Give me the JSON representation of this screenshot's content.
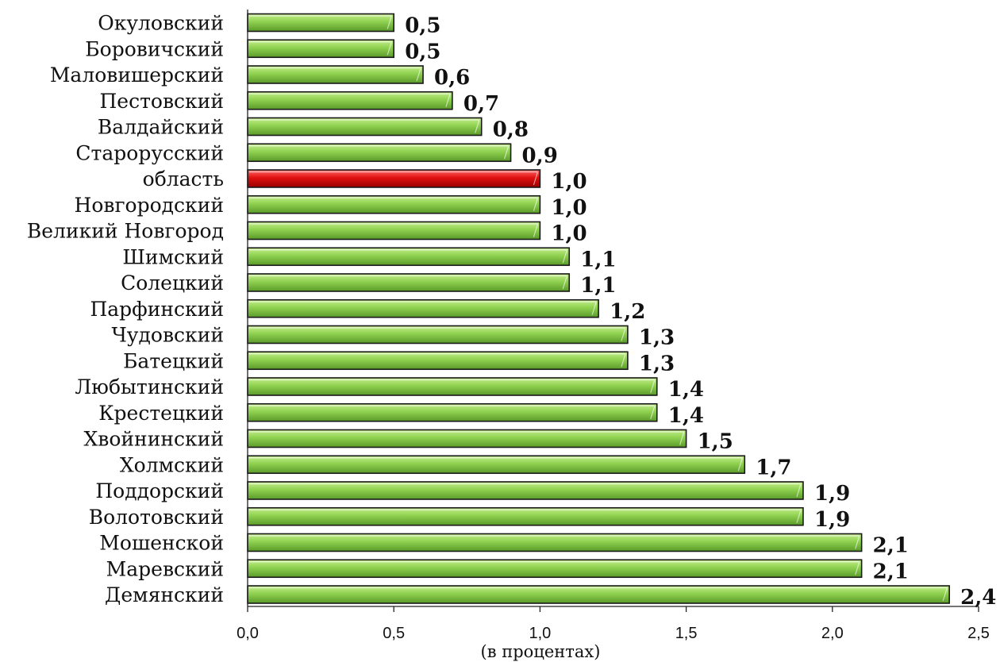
{
  "chart_data": {
    "type": "bar",
    "orientation": "horizontal",
    "categories": [
      "Окуловский",
      "Боровичский",
      "Маловишерский",
      "Пестовский",
      "Валдайский",
      "Старорусский",
      "область",
      "Новгородский",
      "Великий Новгород",
      "Шимский",
      "Солецкий",
      "Парфинский",
      "Чудовский",
      "Батецкий",
      "Любытинский",
      "Крестецкий",
      "Хвойнинский",
      "Холмский",
      "Поддорский",
      "Волотовский",
      "Мошенской",
      "Маревский",
      "Демянский"
    ],
    "values": [
      0.5,
      0.5,
      0.6,
      0.7,
      0.8,
      0.9,
      1.0,
      1.0,
      1.0,
      1.1,
      1.1,
      1.2,
      1.3,
      1.3,
      1.4,
      1.4,
      1.5,
      1.7,
      1.9,
      1.9,
      2.1,
      2.1,
      2.4
    ],
    "value_labels": [
      "0,5",
      "0,5",
      "0,6",
      "0,7",
      "0,8",
      "0,9",
      "1,0",
      "1,0",
      "1,0",
      "1,1",
      "1,1",
      "1,2",
      "1,3",
      "1,3",
      "1,4",
      "1,4",
      "1,5",
      "1,7",
      "1,9",
      "1,9",
      "2,1",
      "2,1",
      "2,4"
    ],
    "highlight_index": 6,
    "xlim": [
      0,
      2.5
    ],
    "x_ticks": [
      0,
      0.5,
      1.0,
      1.5,
      2.0,
      2.5
    ],
    "x_tick_labels": [
      "0,0",
      "0,5",
      "1,0",
      "1,5",
      "2,0",
      "2,5"
    ],
    "xlabel": "(в процентах)",
    "title": "",
    "grid": false,
    "colors": {
      "bar": "#8fd14f",
      "bar_light": "#c6ef8e",
      "bar_dark": "#5a9a2a",
      "highlight": "#e01010",
      "highlight_light": "#ff6a6a",
      "highlight_dark": "#9a0000"
    }
  }
}
